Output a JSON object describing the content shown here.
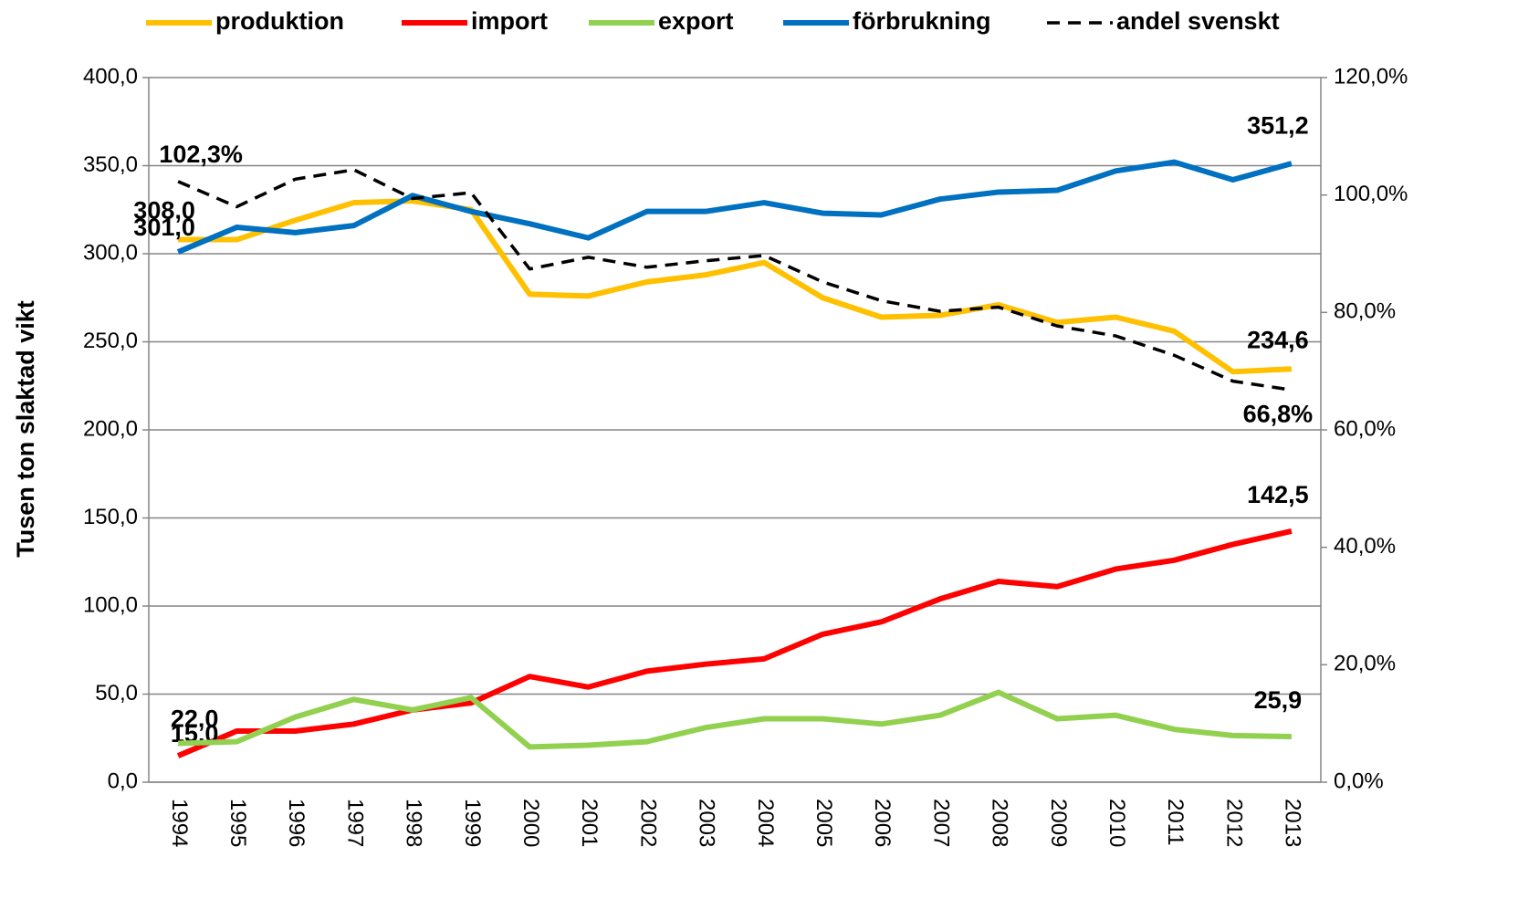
{
  "chart_data": {
    "type": "line",
    "y_label": "Tusen ton slaktad vikt",
    "x": [
      "1994",
      "1995",
      "1996",
      "1997",
      "1998",
      "1999",
      "2000",
      "2001",
      "2002",
      "2003",
      "2004",
      "2005",
      "2006",
      "2007",
      "2008",
      "2009",
      "2010",
      "2011",
      "2012",
      "2013"
    ],
    "ylim": [
      0,
      400
    ],
    "yticks": [
      {
        "value": 0,
        "label": "0,0"
      },
      {
        "value": 50,
        "label": "50,0"
      },
      {
        "value": 100,
        "label": "100,0"
      },
      {
        "value": 150,
        "label": "150,0"
      },
      {
        "value": 200,
        "label": "200,0"
      },
      {
        "value": 250,
        "label": "250,0"
      },
      {
        "value": 300,
        "label": "300,0"
      },
      {
        "value": 350,
        "label": "350,0"
      },
      {
        "value": 400,
        "label": "400,0"
      }
    ],
    "y2lim": [
      0,
      120
    ],
    "y2ticks": [
      {
        "value": 0,
        "label": "0,0%"
      },
      {
        "value": 20,
        "label": "20,0%"
      },
      {
        "value": 40,
        "label": "40,0%"
      },
      {
        "value": 60,
        "label": "60,0%"
      },
      {
        "value": 80,
        "label": "80,0%"
      },
      {
        "value": 100,
        "label": "100,0%"
      },
      {
        "value": 120,
        "label": "120,0%"
      }
    ],
    "grid": true,
    "legend": "top",
    "series": [
      {
        "name": "produktion",
        "color": "#FFC000",
        "values": [
          308.0,
          308,
          319,
          329,
          330,
          325,
          277,
          276,
          284,
          288,
          295,
          275,
          264,
          265,
          271,
          261,
          264,
          256,
          233,
          234.6
        ],
        "value_labels": [
          "308,0",
          null,
          null,
          null,
          null,
          null,
          null,
          null,
          null,
          null,
          null,
          null,
          null,
          null,
          null,
          null,
          null,
          null,
          null,
          "234,6"
        ]
      },
      {
        "name": "import",
        "color": "#FF0000",
        "values": [
          15.0,
          29,
          29,
          33,
          41,
          45,
          60,
          54,
          63,
          67,
          70,
          84,
          91,
          104,
          114,
          111,
          121,
          126,
          135,
          142.5
        ],
        "value_labels": [
          "15,0",
          null,
          null,
          null,
          null,
          null,
          null,
          null,
          null,
          null,
          null,
          null,
          null,
          null,
          null,
          null,
          null,
          null,
          null,
          "142,5"
        ]
      },
      {
        "name": "export",
        "color": "#92D050",
        "values": [
          22.0,
          23,
          37,
          47,
          41,
          48,
          20,
          21,
          23,
          31,
          36,
          36,
          33,
          38,
          51,
          36,
          38,
          30,
          26.5,
          25.9
        ],
        "value_labels": [
          "22,0",
          null,
          null,
          null,
          null,
          null,
          null,
          null,
          null,
          null,
          null,
          null,
          null,
          null,
          null,
          null,
          null,
          null,
          null,
          "25,9"
        ]
      },
      {
        "name": "förbrukning",
        "color": "#0070C0",
        "values": [
          301.0,
          315,
          312,
          316,
          333,
          324,
          317,
          309,
          324,
          324,
          329,
          323,
          322,
          331,
          335,
          336,
          347,
          352,
          342,
          351.2
        ],
        "value_labels": [
          "301,0",
          null,
          null,
          null,
          null,
          null,
          null,
          null,
          null,
          null,
          null,
          null,
          null,
          null,
          null,
          null,
          null,
          null,
          null,
          "351,2"
        ]
      },
      {
        "name": "andel svenskt",
        "color": "#000000",
        "dashed": true,
        "axis": "y2",
        "values": [
          102.3,
          98,
          102.7,
          104.3,
          99.4,
          100.4,
          87.4,
          89.4,
          87.7,
          88.8,
          89.7,
          85.2,
          82.0,
          80.2,
          80.9,
          77.7,
          76.0,
          72.7,
          68.3,
          66.8
        ],
        "value_labels": [
          "102,3%",
          null,
          null,
          null,
          null,
          null,
          null,
          null,
          null,
          null,
          null,
          null,
          null,
          null,
          null,
          null,
          null,
          null,
          null,
          "66,8%"
        ]
      }
    ]
  }
}
